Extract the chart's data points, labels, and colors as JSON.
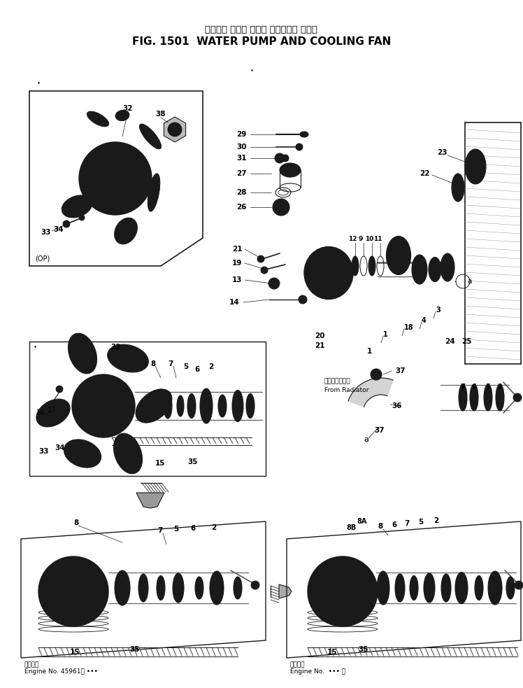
{
  "title_japanese": "ウォータ ポンプ および クーリング ファン",
  "title_english": "FIG. 1501  WATER PUMP AND COOLING FAN",
  "bg_color": "#ffffff",
  "fig_width": 7.48,
  "fig_height": 9.83,
  "dpi": 100,
  "footer_left_jp": "適用号番",
  "footer_left_en": "Engine No. 45961～ •••",
  "footer_right_jp": "適用号数",
  "footer_right_en": "Engine No.  ••• ～",
  "radiator_jp": "ラジエータから",
  "radiator_en": "From Radiator"
}
